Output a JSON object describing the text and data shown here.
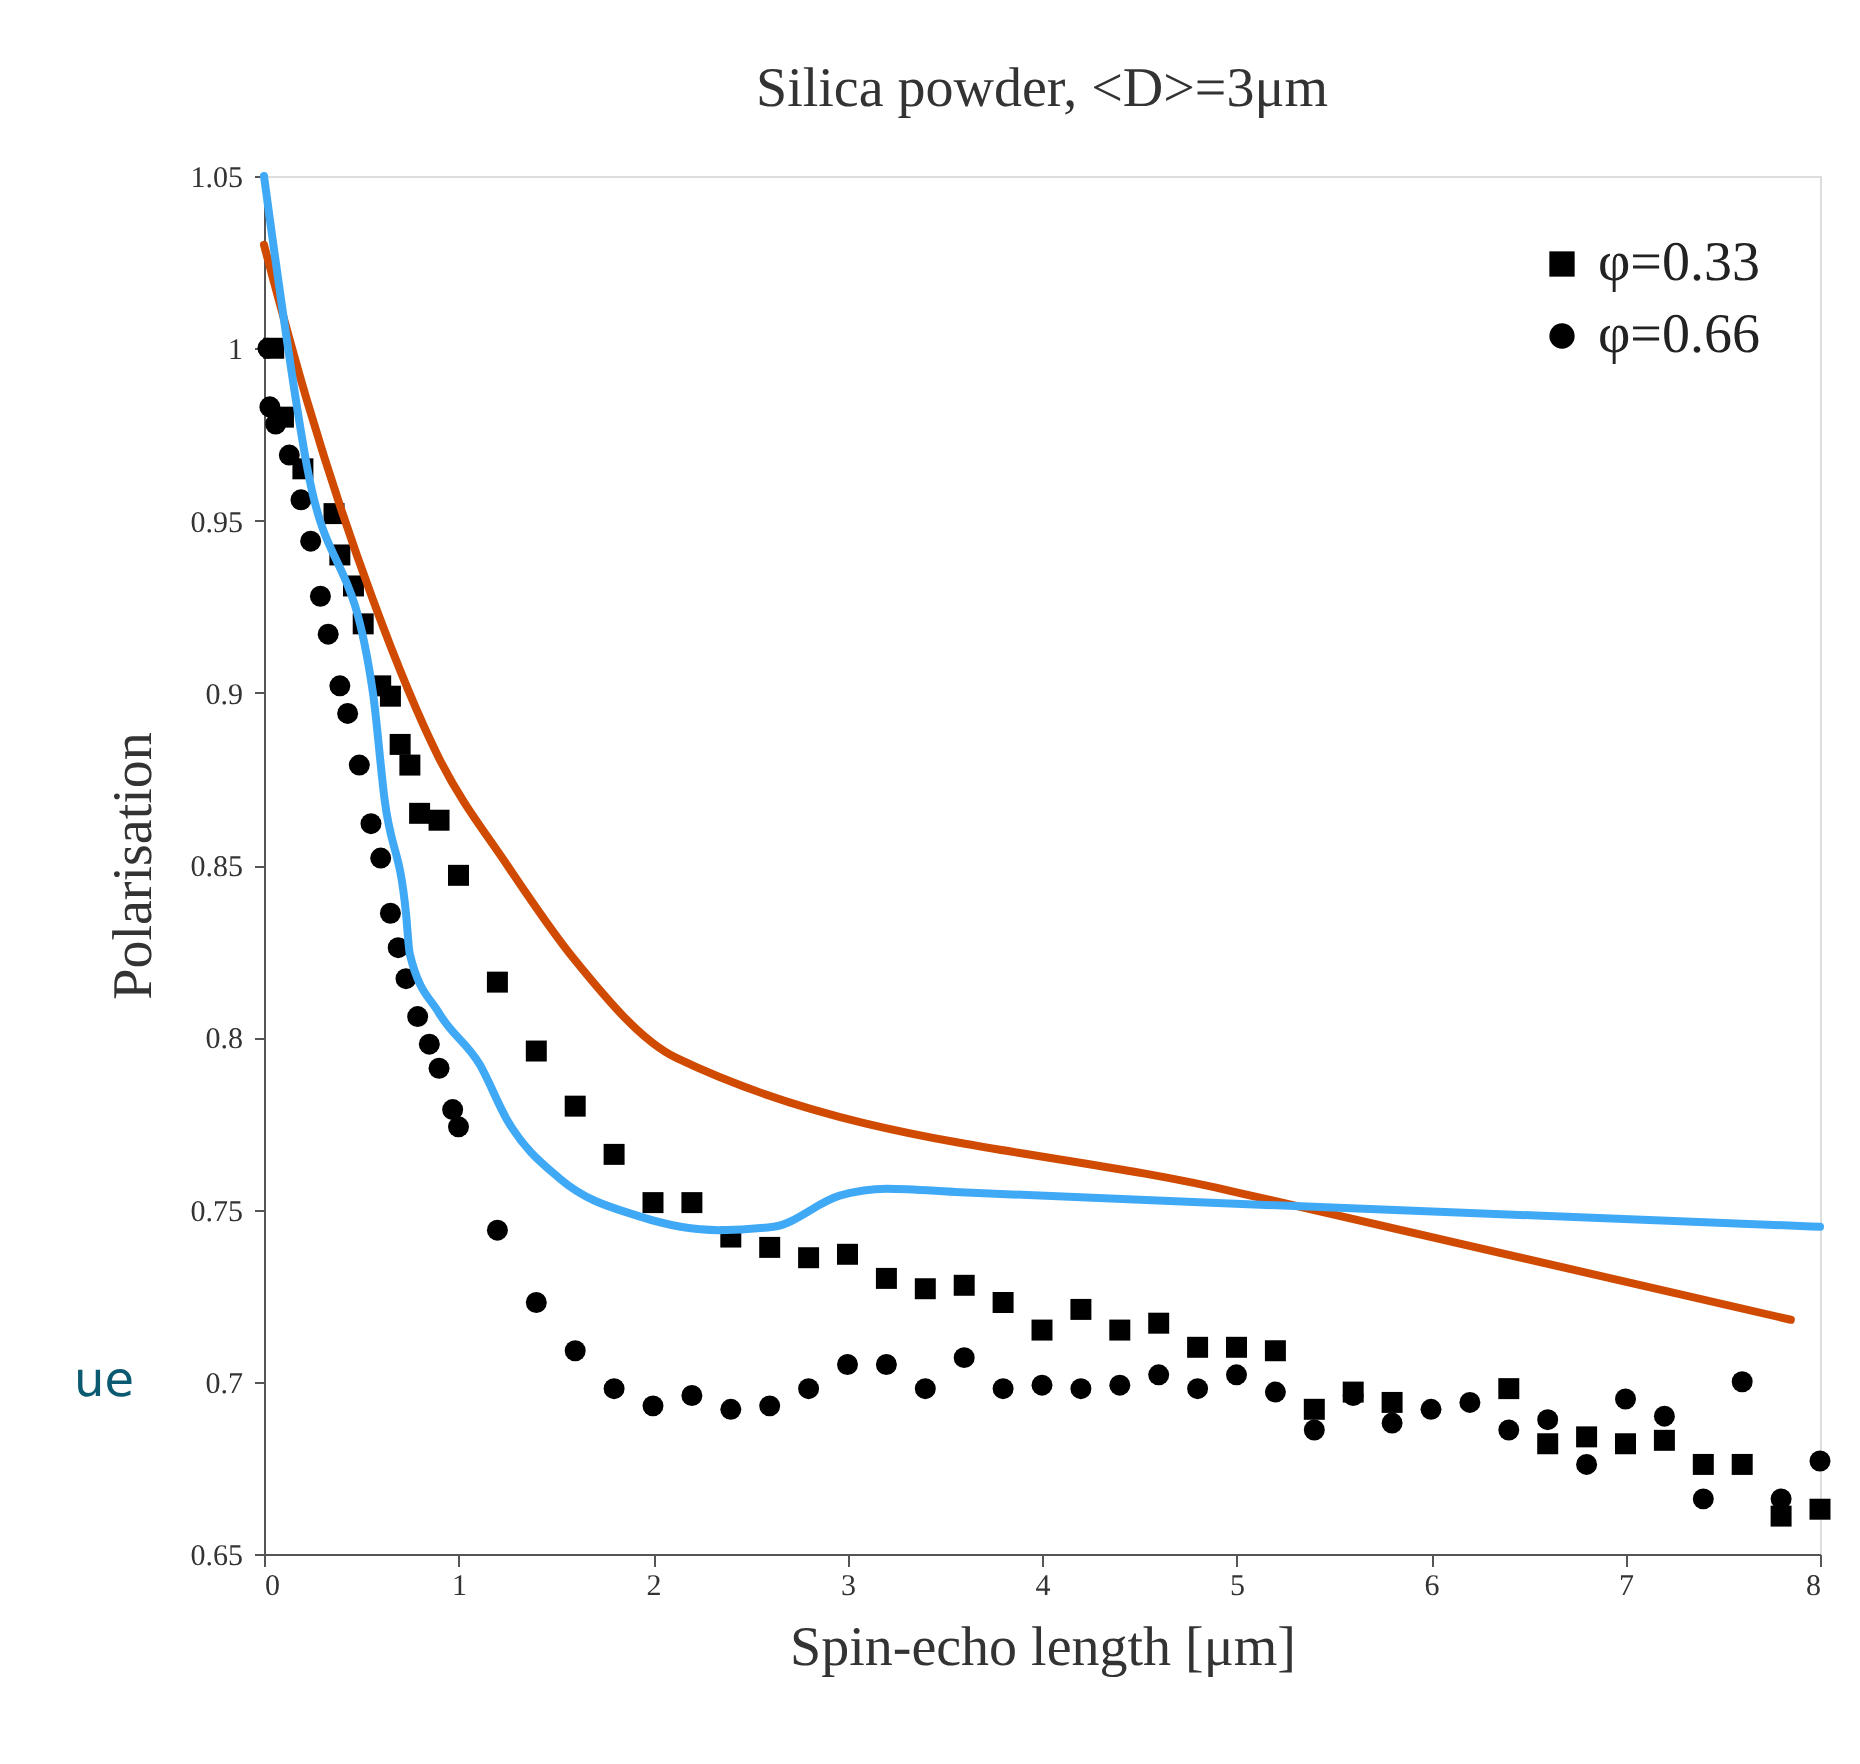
{
  "chart_data": {
    "type": "scatter",
    "title": "Silica powder, <D>=3μm",
    "xlabel": "Spin-echo length [μm]",
    "ylabel": "Polarisation",
    "xlim": [
      0,
      8
    ],
    "xticks": [
      0,
      1,
      2,
      3,
      4,
      5,
      6,
      7,
      8
    ],
    "ylim": [
      0.65,
      1.05
    ],
    "yticks": [
      0.65,
      0.7,
      0.75,
      0.8,
      0.85,
      0.9,
      0.95,
      1,
      1.05
    ],
    "grid": false,
    "legend": "top right",
    "series": [
      {
        "name": "φ=0.33",
        "type": "scatter",
        "marker": "square",
        "color": "#000000",
        "x": [
          0.05,
          0.1,
          0.2,
          0.36,
          0.39,
          0.46,
          0.51,
          0.6,
          0.65,
          0.7,
          0.75,
          0.8,
          0.9,
          1.0,
          1.2,
          1.4,
          1.6,
          1.8,
          2.0,
          2.2,
          2.4,
          2.6,
          2.8,
          3.0,
          3.2,
          3.4,
          3.6,
          3.8,
          4.0,
          4.2,
          4.4,
          4.6,
          4.8,
          5.0,
          5.2,
          5.4,
          5.6,
          5.8,
          6.4,
          6.6,
          6.8,
          7.0,
          7.2,
          7.4,
          7.6,
          7.8,
          8.0
        ],
        "values": [
          1.0,
          0.98,
          0.965,
          0.952,
          0.94,
          0.931,
          0.92,
          0.902,
          0.899,
          0.885,
          0.879,
          0.865,
          0.863,
          0.847,
          0.816,
          0.796,
          0.78,
          0.766,
          0.752,
          0.752,
          0.742,
          0.739,
          0.736,
          0.737,
          0.73,
          0.727,
          0.728,
          0.723,
          0.715,
          0.721,
          0.715,
          0.717,
          0.71,
          0.71,
          0.709,
          0.692,
          0.697,
          0.694,
          0.698,
          0.682,
          0.684,
          0.682,
          0.683,
          0.676,
          0.676,
          0.661,
          0.663
        ]
      },
      {
        "name": "φ=0.66",
        "type": "scatter",
        "marker": "circle",
        "color": "#000000",
        "x": [
          0.02,
          0.03,
          0.06,
          0.13,
          0.19,
          0.24,
          0.29,
          0.33,
          0.39,
          0.43,
          0.49,
          0.55,
          0.6,
          0.65,
          0.69,
          0.73,
          0.79,
          0.85,
          0.9,
          0.97,
          1.0,
          1.2,
          1.4,
          1.6,
          1.8,
          2.0,
          2.2,
          2.4,
          2.6,
          2.8,
          3.0,
          3.2,
          3.4,
          3.6,
          3.8,
          4.0,
          4.2,
          4.4,
          4.6,
          4.8,
          5.0,
          5.2,
          5.4,
          5.6,
          5.8,
          6.0,
          6.2,
          6.4,
          6.6,
          6.8,
          7.0,
          7.2,
          7.4,
          7.6,
          7.8,
          8.0
        ],
        "values": [
          1.0,
          0.983,
          0.978,
          0.969,
          0.956,
          0.944,
          0.928,
          0.917,
          0.902,
          0.894,
          0.879,
          0.862,
          0.852,
          0.836,
          0.826,
          0.817,
          0.806,
          0.798,
          0.791,
          0.779,
          0.774,
          0.744,
          0.723,
          0.709,
          0.698,
          0.693,
          0.696,
          0.692,
          0.693,
          0.698,
          0.705,
          0.705,
          0.698,
          0.707,
          0.698,
          0.699,
          0.698,
          0.699,
          0.702,
          0.698,
          0.702,
          0.697,
          0.686,
          0.696,
          0.688,
          0.692,
          0.694,
          0.686,
          0.689,
          0.676,
          0.695,
          0.69,
          0.666,
          0.7,
          0.666,
          0.677
        ]
      },
      {
        "type": "line",
        "color": "#d04a02",
        "x": [
          0.0,
          0.22,
          0.56,
          0.9,
          1.25,
          1.59,
          2.12,
          5.0,
          7.85
        ],
        "values": [
          1.03,
          0.985,
          0.927,
          0.881,
          0.85,
          0.823,
          0.794,
          0.755,
          0.718
        ]
      },
      {
        "type": "line",
        "color": "#3fa9f5",
        "x": [
          0.0,
          0.22,
          0.56,
          0.62,
          0.73,
          0.75,
          0.9,
          1.11,
          1.25,
          1.52,
          1.93,
          2.34,
          2.62,
          2.96,
          3.2,
          3.58,
          5.3,
          8.0
        ],
        "values": [
          1.05,
          0.966,
          0.9,
          0.869,
          0.836,
          0.824,
          0.807,
          0.792,
          0.776,
          0.759,
          0.748,
          0.744,
          0.745,
          0.754,
          0.756,
          0.755,
          0.751,
          0.745
        ]
      }
    ],
    "annotations": [
      "ue"
    ]
  }
}
